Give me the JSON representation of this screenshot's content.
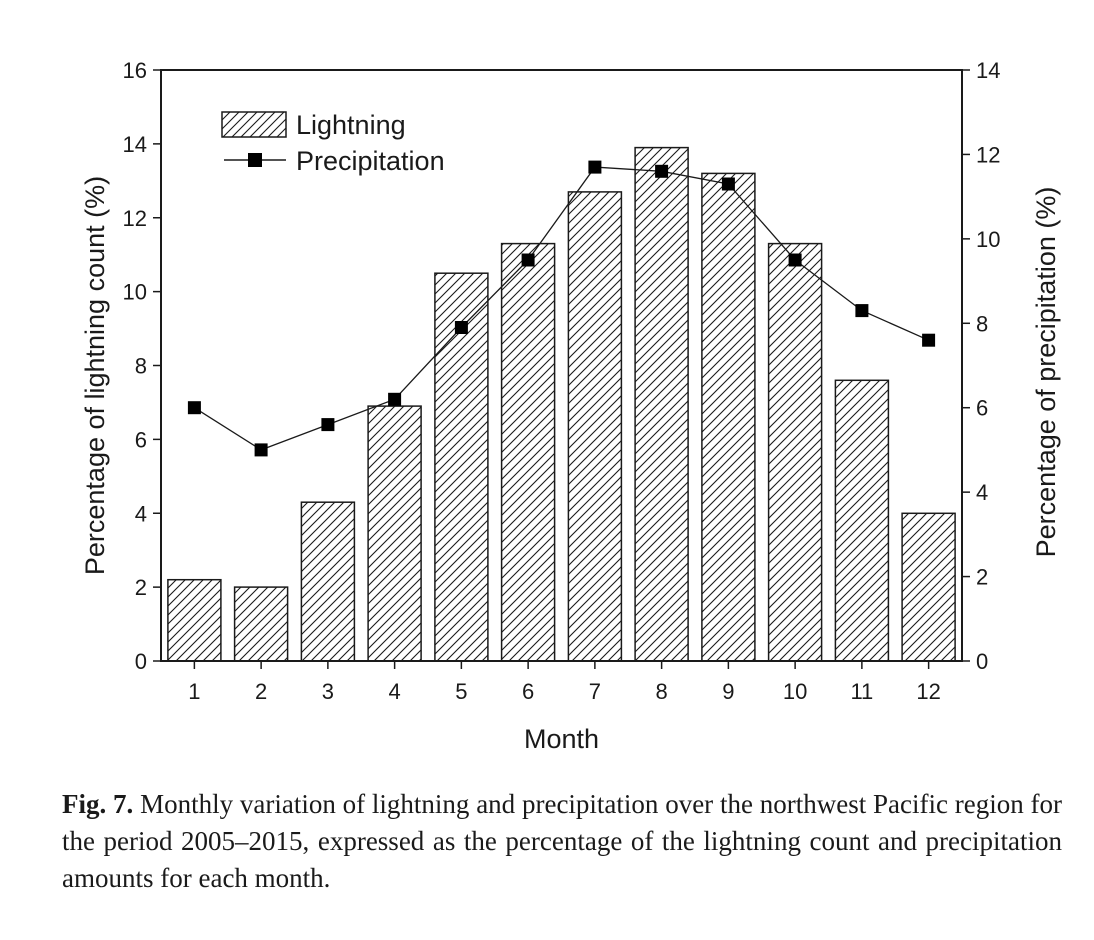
{
  "chart_data": {
    "type": "bar",
    "categories": [
      "1",
      "2",
      "3",
      "4",
      "5",
      "6",
      "7",
      "8",
      "9",
      "10",
      "11",
      "12"
    ],
    "series": [
      {
        "name": "Lightning",
        "type": "bar",
        "axis": "left",
        "values": [
          2.2,
          2.0,
          4.3,
          6.9,
          10.5,
          11.3,
          12.7,
          13.9,
          13.2,
          11.3,
          7.6,
          4.0
        ]
      },
      {
        "name": "Precipitation",
        "type": "line",
        "axis": "right",
        "values": [
          6.0,
          5.0,
          5.6,
          6.2,
          7.9,
          9.5,
          11.7,
          11.6,
          11.3,
          9.5,
          8.3,
          7.6
        ]
      }
    ],
    "xlabel": "Month",
    "ylabel_left": "Percentage of lightning count (%)",
    "ylabel_right": "Percentage of precipitation (%)",
    "ylim_left": [
      0,
      16
    ],
    "yticks_left": [
      0,
      2,
      4,
      6,
      8,
      10,
      12,
      14,
      16
    ],
    "ylim_right": [
      0,
      14
    ],
    "yticks_right": [
      0,
      2,
      4,
      6,
      8,
      10,
      12,
      14
    ],
    "legend_position": "top-left",
    "grid": false,
    "bar_pattern": "diagonal-hatch",
    "colors": {
      "ink": "#1a1a1a",
      "bar_fill": "#ffffff",
      "marker": "#000000"
    }
  },
  "caption": {
    "label": "Fig. 7.",
    "text": "Monthly variation of lightning and precipitation over the northwest Pacific region for the period 2005–2015, expressed as the percentage of the lightning count and precipitation amounts for each month."
  }
}
